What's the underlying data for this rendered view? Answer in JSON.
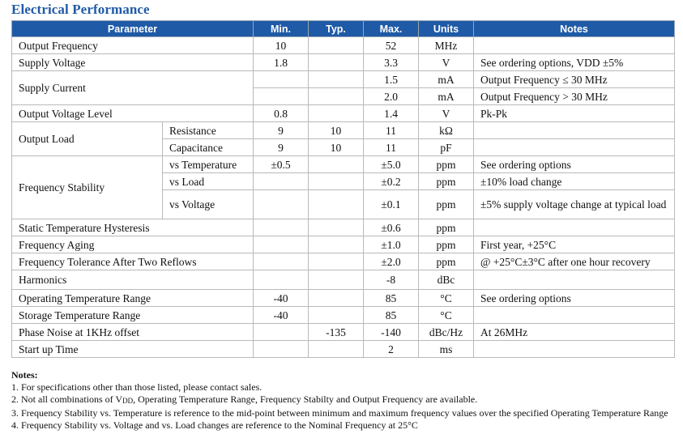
{
  "title": "Electrical Performance",
  "headers": {
    "parameter": "Parameter",
    "min": "Min.",
    "typ": "Typ.",
    "max": "Max.",
    "units": "Units",
    "notes": "Notes"
  },
  "rows": {
    "output_frequency": {
      "param": "Output Frequency",
      "min": "10",
      "typ": "",
      "max": "52",
      "units": "MHz",
      "notes": ""
    },
    "supply_voltage": {
      "param": "Supply Voltage",
      "min": "1.8",
      "typ": "",
      "max": "3.3",
      "units": "V",
      "notes": "See ordering options, VDD ±5%"
    },
    "supply_current": {
      "param": "Supply Current",
      "row1": {
        "min": "",
        "typ": "",
        "max": "1.5",
        "units": "mA",
        "notes": "Output Frequency ≤ 30 MHz"
      },
      "row2": {
        "min": "",
        "typ": "",
        "max": "2.0",
        "units": "mA",
        "notes": "Output Frequency > 30 MHz"
      }
    },
    "output_voltage_level": {
      "param": "Output Voltage Level",
      "min": "0.8",
      "typ": "",
      "max": "1.4",
      "units": "V",
      "notes": "Pk-Pk"
    },
    "output_load": {
      "param": "Output Load",
      "resistance": {
        "sub": "Resistance",
        "min": "9",
        "typ": "10",
        "max": "11",
        "units": "kΩ",
        "notes": ""
      },
      "capacitance": {
        "sub": "Capacitance",
        "min": "9",
        "typ": "10",
        "max": "11",
        "units": "pF",
        "notes": ""
      }
    },
    "frequency_stability": {
      "param": "Frequency Stability",
      "vs_temperature": {
        "sub": "vs Temperature",
        "min": "±0.5",
        "typ": "",
        "max": "±5.0",
        "units": "ppm",
        "notes": "See ordering options"
      },
      "vs_load": {
        "sub": "vs Load",
        "min": "",
        "typ": "",
        "max": "±0.2",
        "units": "ppm",
        "notes": "±10% load change"
      },
      "vs_voltage": {
        "sub": "vs Voltage",
        "min": "",
        "typ": "",
        "max": "±0.1",
        "units": "ppm",
        "notes": "±5% supply voltage change at typical load"
      }
    },
    "static_temp_hysteresis": {
      "param": "Static Temperature Hysteresis",
      "min": "",
      "typ": "",
      "max": "±0.6",
      "units": "ppm",
      "notes": ""
    },
    "frequency_aging": {
      "param": "Frequency Aging",
      "min": "",
      "typ": "",
      "max": "±1.0",
      "units": "ppm",
      "notes": "First year, +25°C"
    },
    "freq_tolerance_reflows": {
      "param": "Frequency Tolerance After Two Reflows",
      "min": "",
      "typ": "",
      "max": "±2.0",
      "units": "ppm",
      "notes": "@ +25°C±3°C after one hour recovery"
    },
    "harmonics": {
      "param": "Harmonics",
      "min": "",
      "typ": "",
      "max": "-8",
      "units": "dBc",
      "notes": ""
    },
    "operating_temp_range": {
      "param": "Operating Temperature Range",
      "min": "-40",
      "typ": "",
      "max": "85",
      "units": "°C",
      "notes": "See ordering options"
    },
    "storage_temp_range": {
      "param": "Storage Temperature Range",
      "min": "-40",
      "typ": "",
      "max": "85",
      "units": "°C",
      "notes": ""
    },
    "phase_noise": {
      "param": "Phase Noise at 1KHz offset",
      "min": "",
      "typ": "-135",
      "max": "-140",
      "units": "dBc/Hz",
      "notes": "At 26MHz"
    },
    "start_up_time": {
      "param": "Start up Time",
      "min": "",
      "typ": "",
      "max": "2",
      "units": "ms",
      "notes": ""
    }
  },
  "notes": {
    "heading": "Notes:",
    "n1": "1. For specifications other than those listed, please contact sales.",
    "n2_pre": "2. Not all combinations of V",
    "n2_sub": "DD",
    "n2_post": ", Operating Temperature Range, Frequency Stabilty and Output Frequency are available.",
    "n3": "3. Frequency Stability vs. Temperature is reference to the mid-point between minimum and maximum frequency values over the specified Operating Temperature Range",
    "n4": "4. Frequency Stability vs. Voltage and vs. Load changes are reference to the Nominal Frequency at 25°C"
  }
}
